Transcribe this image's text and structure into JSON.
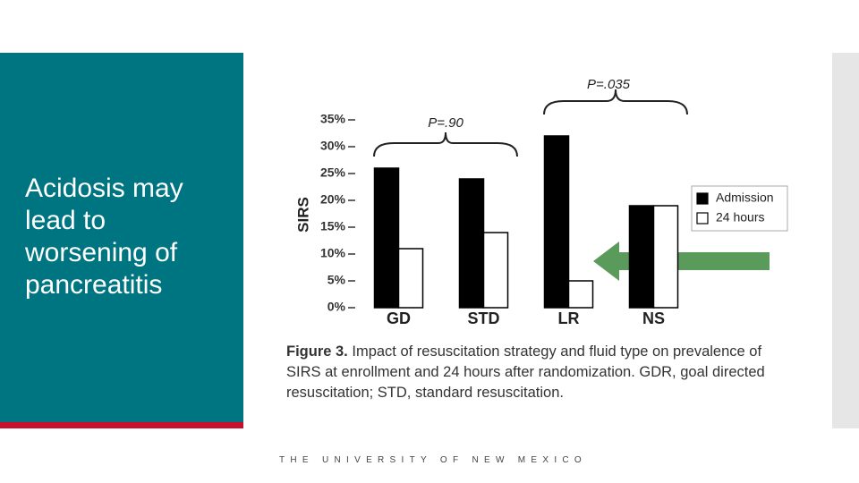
{
  "slide": {
    "text": "Acidosis may lead to worsening of pancreatitis",
    "footer": "THE UNIVERSITY OF NEW MEXICO"
  },
  "chart_data": {
    "type": "bar",
    "ylabel": "SIRS",
    "categories": [
      "GD",
      "STD",
      "LR",
      "NS"
    ],
    "series": [
      {
        "name": "Admission",
        "color": "#000000",
        "values": [
          26,
          24,
          32,
          19
        ]
      },
      {
        "name": "24 hours",
        "color": "#ffffff",
        "values": [
          11,
          14,
          5,
          19
        ]
      }
    ],
    "ylim": [
      0,
      35
    ],
    "yticks": [
      {
        "value": 0,
        "label": "0%"
      },
      {
        "value": 5,
        "label": "5%"
      },
      {
        "value": 10,
        "label": "10%"
      },
      {
        "value": 15,
        "label": "15%"
      },
      {
        "value": 20,
        "label": "20%"
      },
      {
        "value": 25,
        "label": "25%"
      },
      {
        "value": 30,
        "label": "30%"
      },
      {
        "value": 35,
        "label": "35%"
      }
    ],
    "annotations": [
      "P=.90",
      "P=.035"
    ],
    "caption": {
      "label": "Figure 3.",
      "text": "Impact of resuscitation strategy and fluid type on prevalence of SIRS at enrollment and 24 hours after randomization. GDR, goal directed resuscitation; STD, standard resuscitation."
    }
  }
}
